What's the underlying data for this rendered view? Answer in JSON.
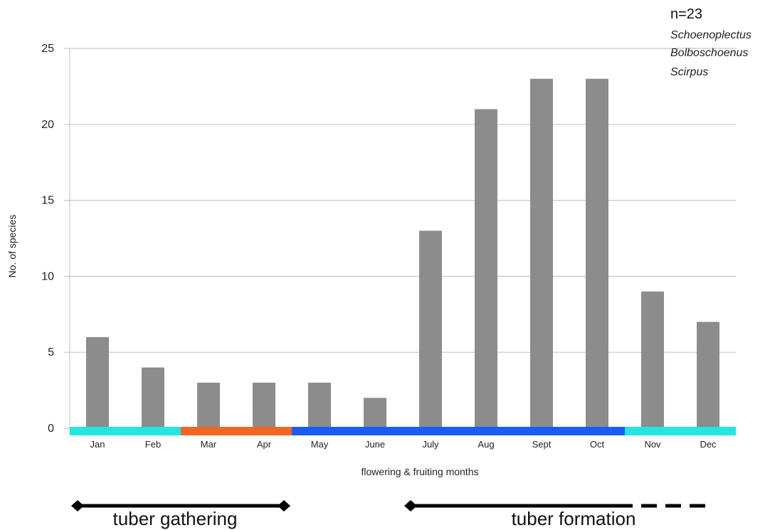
{
  "chart_data": {
    "type": "bar",
    "categories": [
      "Jan",
      "Feb",
      "Mar",
      "Apr",
      "May",
      "June",
      "July",
      "Aug",
      "Sept",
      "Oct",
      "Nov",
      "Dec"
    ],
    "values": [
      6,
      4,
      3,
      3,
      3,
      2,
      13,
      21,
      23,
      23,
      9,
      7
    ],
    "title": "",
    "xlabel": "flowering & fruiting months",
    "ylabel": "No. of species",
    "ylim": [
      0,
      25
    ],
    "yticks": [
      0,
      5,
      10,
      15,
      20,
      25
    ],
    "grid": true,
    "bar_color": "#8c8c8c",
    "season_bands": [
      {
        "from": "Jan",
        "to": "Feb",
        "color": "#22e6e0"
      },
      {
        "from": "Mar",
        "to": "Apr",
        "color": "#f26522"
      },
      {
        "from": "May",
        "to": "Oct",
        "color": "#1a5cf5"
      },
      {
        "from": "Nov",
        "to": "Dec",
        "color": "#22e6e0"
      }
    ],
    "annotations": {
      "sample_size": "n=23",
      "genera": [
        "Schoenoplectus",
        "Bolboschoenus",
        "Scirpus"
      ],
      "periods": [
        {
          "label": "tuber gathering",
          "from": "Jan",
          "to": "Apr",
          "style": "solid"
        },
        {
          "label": "tuber formation",
          "from": "July",
          "to": "Oct",
          "style": "solid"
        },
        {
          "label": "",
          "from": "Oct",
          "to": "Dec",
          "style": "dashed"
        }
      ]
    }
  }
}
